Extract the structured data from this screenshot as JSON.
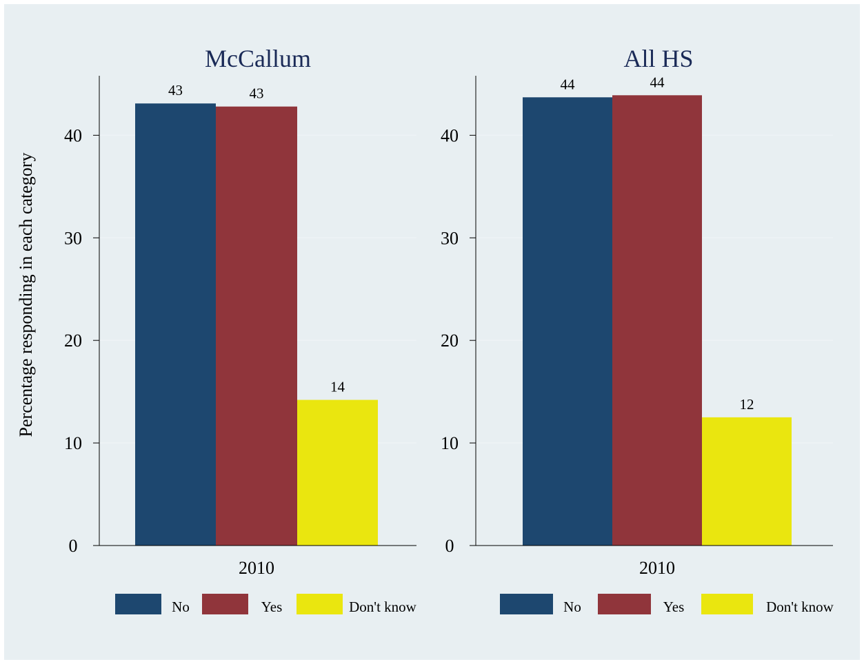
{
  "colors": {
    "No": "#1d476f",
    "Yes": "#90353b",
    "Don't know": "#eae60f",
    "background": "#e8eff2",
    "title": "#1a2a57"
  },
  "chart_data": [
    {
      "type": "bar",
      "title": "McCallum",
      "xlabel": "",
      "ylabel": "Percentage responding in each category",
      "categories": [
        "2010"
      ],
      "series": [
        {
          "name": "No",
          "values": [
            43.1
          ]
        },
        {
          "name": "Yes",
          "values": [
            42.8
          ]
        },
        {
          "name": "Don't know",
          "values": [
            14.2
          ]
        }
      ],
      "data_labels": [
        "43",
        "43",
        "14"
      ],
      "yticks": [
        0,
        10,
        20,
        30,
        40
      ],
      "ylim": [
        0,
        45.8
      ],
      "grid": true,
      "legend": {
        "position": "bottom",
        "entries": [
          "No",
          "Yes",
          "Don't know"
        ]
      }
    },
    {
      "type": "bar",
      "title": "All HS",
      "xlabel": "",
      "ylabel": "",
      "categories": [
        "2010"
      ],
      "series": [
        {
          "name": "No",
          "values": [
            43.7
          ]
        },
        {
          "name": "Yes",
          "values": [
            43.9
          ]
        },
        {
          "name": "Don't know",
          "values": [
            12.5
          ]
        }
      ],
      "data_labels": [
        "44",
        "44",
        "12"
      ],
      "yticks": [
        0,
        10,
        20,
        30,
        40
      ],
      "ylim": [
        0,
        45.8
      ],
      "grid": true,
      "legend": {
        "position": "bottom",
        "entries": [
          "No",
          "Yes",
          "Don't know"
        ]
      }
    }
  ]
}
